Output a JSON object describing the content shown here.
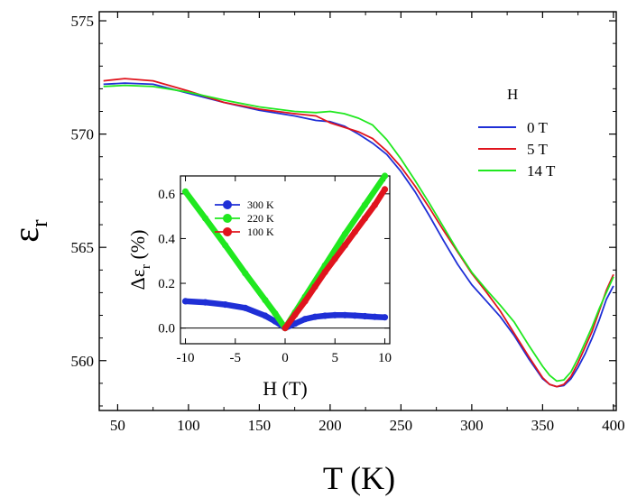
{
  "chart_data": [
    {
      "id": "main",
      "type": "line",
      "xlabel": "T (K)",
      "ylabel": {
        "symbol": "ε",
        "sub": "r"
      },
      "xlim": [
        37,
        402
      ],
      "ylim": [
        557.8,
        575.4
      ],
      "xticks": [
        50,
        100,
        150,
        200,
        250,
        300,
        350,
        400
      ],
      "yticks": [
        560,
        565,
        570,
        575
      ],
      "legend": {
        "title": "H",
        "position": "right"
      },
      "series": [
        {
          "name": "0 T",
          "color": "#1f2fd6",
          "x": [
            40,
            55,
            75,
            100,
            125,
            150,
            175,
            190,
            200,
            210,
            220,
            230,
            240,
            250,
            260,
            270,
            280,
            290,
            300,
            310,
            320,
            330,
            340,
            350,
            355,
            360,
            365,
            370,
            375,
            380,
            385,
            390,
            395,
            400
          ],
          "y": [
            572.2,
            572.25,
            572.2,
            571.8,
            571.4,
            571.05,
            570.8,
            570.6,
            570.55,
            570.35,
            570.0,
            569.6,
            569.1,
            568.35,
            567.45,
            566.4,
            565.3,
            564.25,
            563.35,
            562.65,
            561.95,
            561.1,
            560.1,
            559.2,
            558.95,
            558.85,
            558.9,
            559.2,
            559.7,
            560.3,
            561.0,
            561.8,
            562.7,
            563.3
          ]
        },
        {
          "name": "5 T",
          "color": "#e0141d",
          "x": [
            40,
            55,
            75,
            100,
            125,
            150,
            175,
            190,
            200,
            210,
            220,
            230,
            240,
            250,
            260,
            270,
            280,
            290,
            300,
            310,
            320,
            330,
            340,
            350,
            355,
            360,
            365,
            370,
            375,
            380,
            385,
            390,
            395,
            400
          ],
          "y": [
            572.35,
            572.45,
            572.35,
            571.9,
            571.4,
            571.1,
            570.9,
            570.8,
            570.5,
            570.3,
            570.1,
            569.8,
            569.25,
            568.55,
            567.7,
            566.75,
            565.75,
            564.8,
            563.85,
            563.05,
            562.2,
            561.2,
            560.2,
            559.25,
            558.95,
            558.85,
            558.95,
            559.3,
            559.9,
            560.6,
            561.3,
            562.2,
            563.1,
            563.8
          ]
        },
        {
          "name": "14 T",
          "color": "#20e81f",
          "x": [
            40,
            55,
            75,
            100,
            125,
            150,
            175,
            190,
            200,
            210,
            220,
            230,
            240,
            250,
            260,
            270,
            280,
            290,
            300,
            310,
            320,
            330,
            340,
            350,
            355,
            360,
            365,
            370,
            375,
            380,
            385,
            390,
            395,
            400
          ],
          "y": [
            572.1,
            572.15,
            572.1,
            571.85,
            571.5,
            571.2,
            571.0,
            570.95,
            571.0,
            570.9,
            570.7,
            570.4,
            569.75,
            568.9,
            567.95,
            566.95,
            565.9,
            564.85,
            563.9,
            563.15,
            562.45,
            561.7,
            560.7,
            559.75,
            559.35,
            559.1,
            559.15,
            559.5,
            560.1,
            560.8,
            561.5,
            562.3,
            563.0,
            563.7
          ]
        }
      ]
    },
    {
      "id": "inset",
      "type": "scatter",
      "xlabel": "H (T)",
      "ylabel": {
        "prefix": "Δε",
        "sub": "r",
        "suffix": " (%)"
      },
      "xlim": [
        -10.5,
        10.5
      ],
      "ylim": [
        -0.07,
        0.68
      ],
      "xticks": [
        -10,
        -5,
        0,
        5,
        10
      ],
      "yticks": [
        0.0,
        0.2,
        0.4,
        0.6
      ],
      "zero_line": true,
      "legend": {
        "position": "top-left"
      },
      "series": [
        {
          "name": "300 K",
          "color": "#1f2fd6",
          "x": [
            -10,
            -8,
            -6,
            -4,
            -2,
            -1,
            0,
            1,
            2,
            3,
            4,
            5,
            6,
            7,
            8,
            9,
            10
          ],
          "y": [
            0.12,
            0.115,
            0.105,
            0.09,
            0.055,
            0.03,
            0.0,
            0.02,
            0.04,
            0.05,
            0.055,
            0.058,
            0.058,
            0.056,
            0.053,
            0.05,
            0.048
          ]
        },
        {
          "name": "220 K",
          "color": "#20e81f",
          "x": [
            -10,
            -8,
            -6,
            -4,
            -2,
            -1,
            0,
            1,
            2,
            4,
            6,
            8,
            10
          ],
          "y": [
            0.61,
            0.49,
            0.37,
            0.245,
            0.125,
            0.065,
            0.0,
            0.07,
            0.14,
            0.28,
            0.42,
            0.55,
            0.68
          ]
        },
        {
          "name": "100 K",
          "color": "#e0141d",
          "x": [
            0,
            1,
            2,
            3,
            4,
            5,
            6,
            7,
            8,
            9,
            10
          ],
          "y": [
            0.0,
            0.06,
            0.12,
            0.185,
            0.25,
            0.31,
            0.37,
            0.43,
            0.49,
            0.55,
            0.62
          ]
        }
      ]
    }
  ]
}
